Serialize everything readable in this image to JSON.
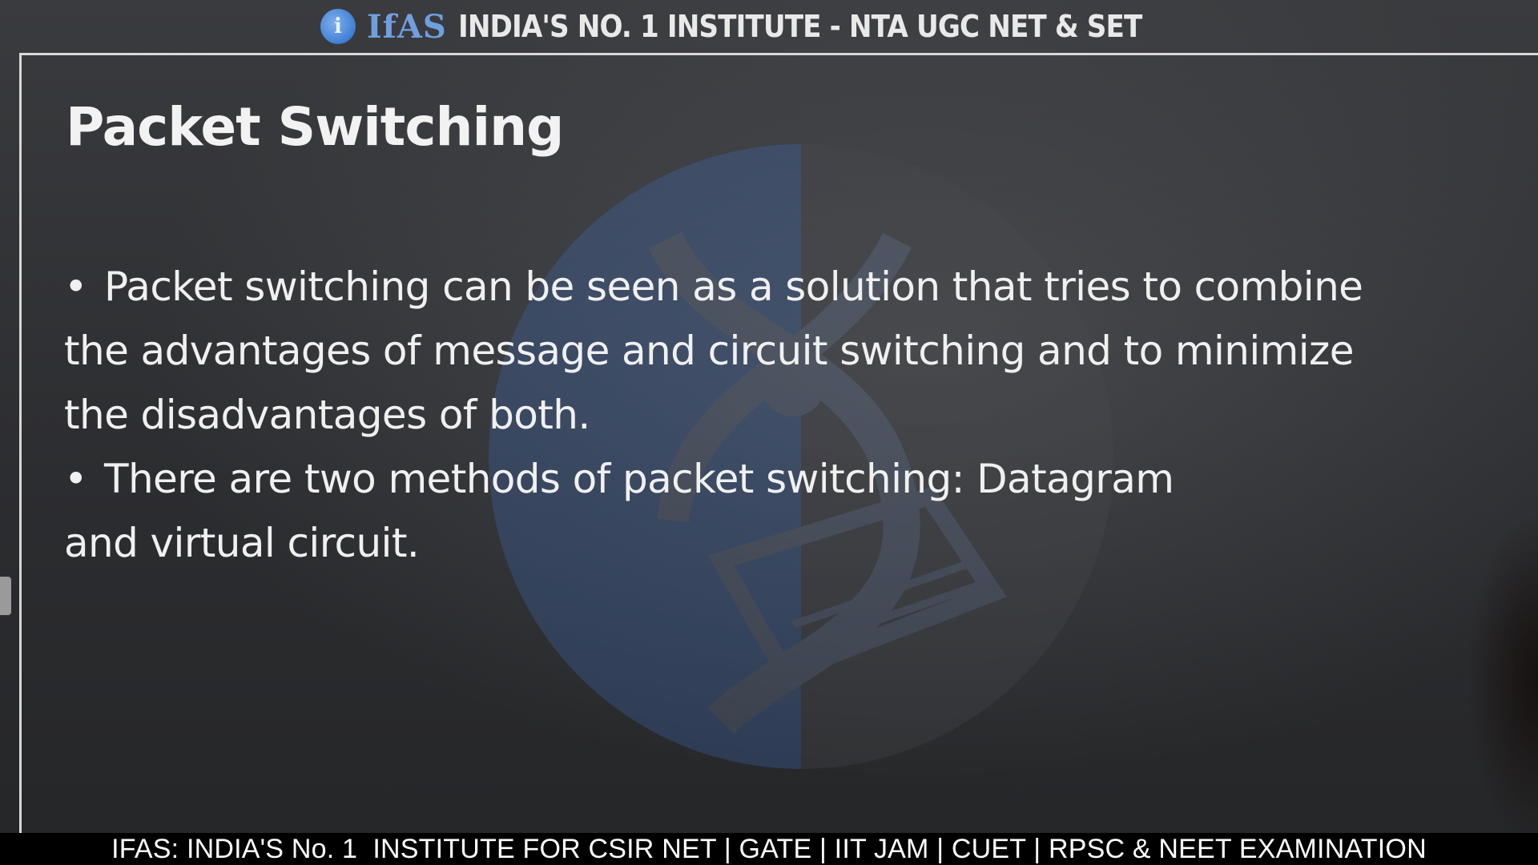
{
  "header": {
    "logo_letter": "i",
    "brand": "IfAS",
    "tagline": "INDIA'S NO. 1 INSTITUTE - NTA UGC NET & SET"
  },
  "slide": {
    "title": "Packet Switching",
    "bullets": [
      {
        "marker": "•",
        "lines": [
          "Packet switching can be seen as a solution that tries to combine",
          "the advantages of message and circuit switching and to minimize",
          "the disadvantages of both."
        ]
      },
      {
        "marker": "•",
        "lines": [
          "There are two methods of packet switching: Datagram",
          "and virtual circuit."
        ]
      }
    ]
  },
  "footer": {
    "ticker": "IFAS: INDIA'S No. 1  INSTITUTE FOR CSIR NET | GATE | IIT JAM | CUET | RPSC & NEET EXAMINATION"
  },
  "colors": {
    "brand_blue": "#6f9fe0",
    "text": "#f0f0f0",
    "ticker_bg": "#000000"
  }
}
